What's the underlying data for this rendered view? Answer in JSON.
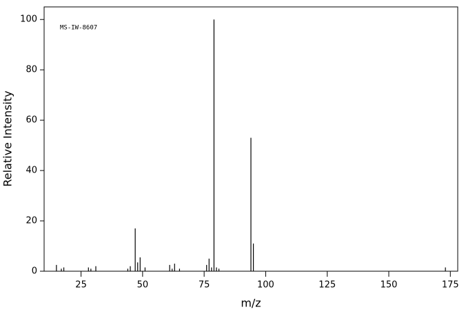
{
  "chart_data": {
    "type": "stem",
    "annotation": "MS-IW-8607",
    "xlabel": "m/z",
    "ylabel": "Relative Intensity",
    "x": [
      15,
      17,
      18,
      28,
      29,
      31,
      44,
      45,
      47,
      48,
      49,
      51,
      61,
      62,
      63,
      65,
      76,
      77,
      78,
      79,
      80,
      81,
      94,
      95,
      173
    ],
    "values": [
      2.5,
      1,
      1.5,
      1.5,
      1,
      2,
      1,
      2,
      17,
      3.5,
      5.5,
      1.5,
      2.5,
      1,
      3,
      1,
      2.5,
      5,
      1.5,
      100,
      1.5,
      1,
      53,
      11,
      1.5
    ],
    "color": "#000000",
    "xlim": [
      10,
      178
    ],
    "xticks": [
      25,
      50,
      75,
      100,
      125,
      150,
      175
    ],
    "ylim": [
      0,
      105
    ],
    "yticks": [
      0,
      20,
      40,
      60,
      80,
      100
    ]
  }
}
